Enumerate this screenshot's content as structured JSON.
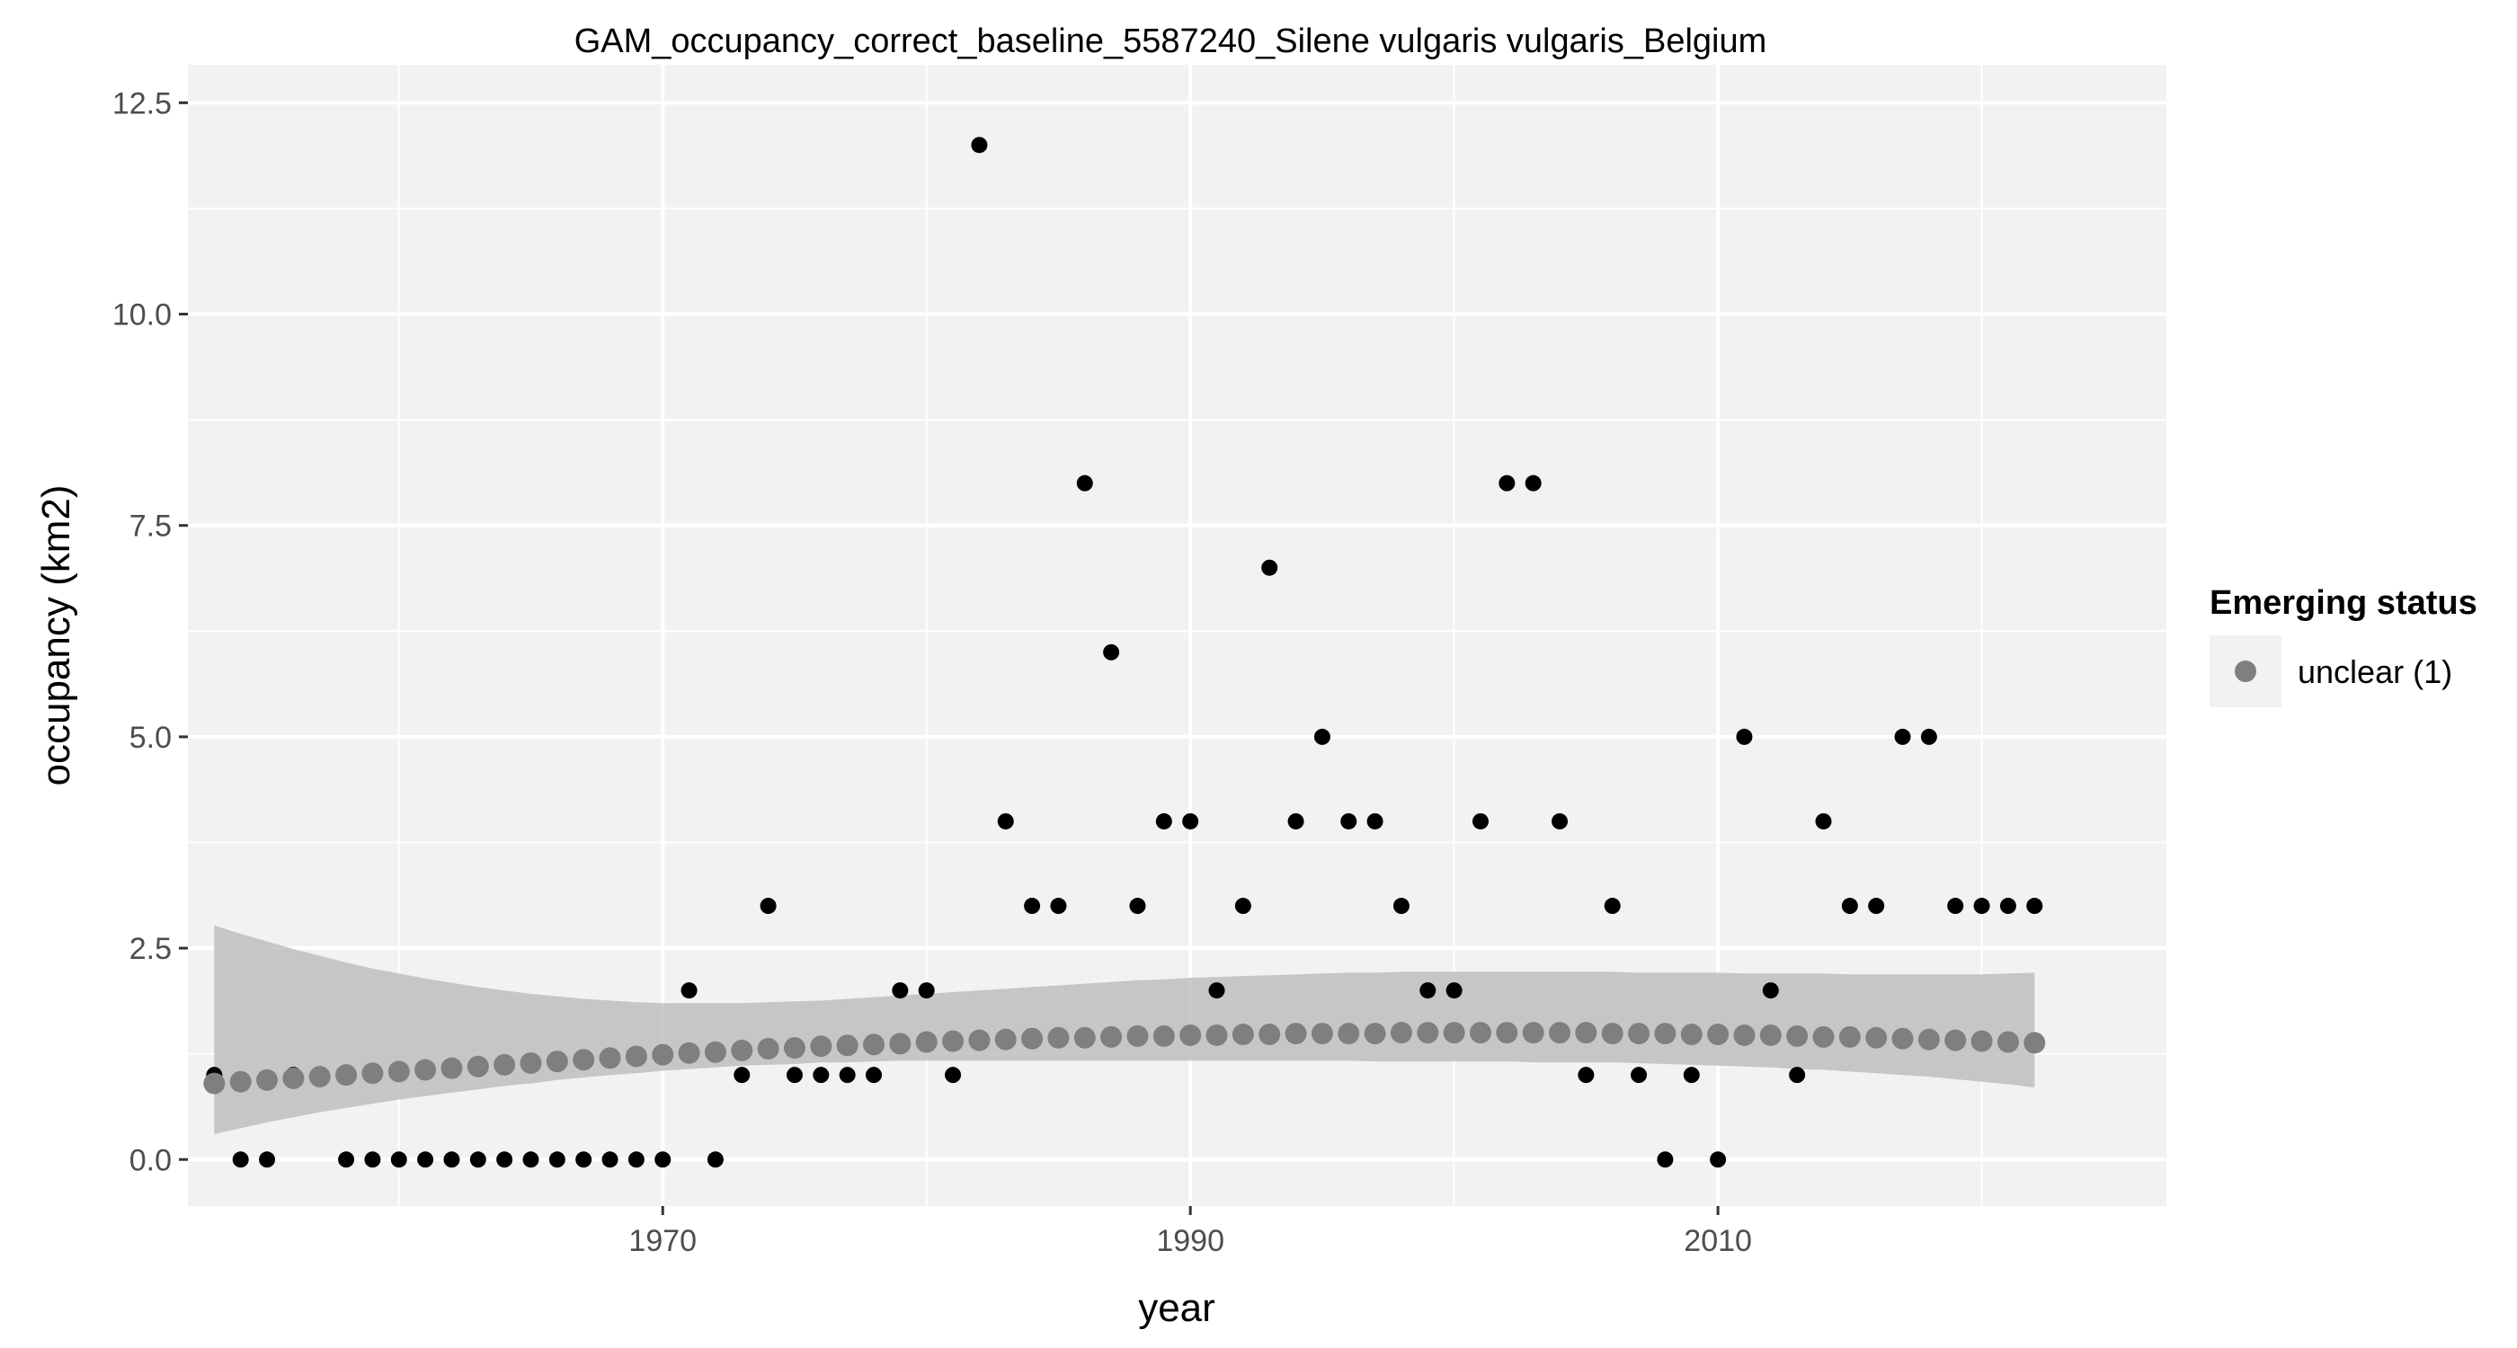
{
  "chart_data": {
    "type": "scatter",
    "title": "GAM_occupancy_correct_baseline_5587240_Silene vulgaris vulgaris_Belgium",
    "xlabel": "year",
    "ylabel": "occupancy (km2)",
    "xlim": [
      1952,
      2027
    ],
    "ylim": [
      -0.55,
      12.95
    ],
    "x_ticks": [
      1970,
      1990,
      2010
    ],
    "x_tick_labels": [
      "1970",
      "1990",
      "2010"
    ],
    "x_minor_ticks": [
      1960,
      1980,
      2000,
      2020
    ],
    "y_ticks": [
      0,
      2.5,
      5,
      7.5,
      10,
      12.5
    ],
    "y_tick_labels": [
      "0.0",
      "2.5",
      "5.0",
      "7.5",
      "10.0",
      "12.5"
    ],
    "y_minor_ticks": [
      1.25,
      3.75,
      6.25,
      8.75,
      11.25
    ],
    "grid": true,
    "legend": {
      "title": "Emerging status",
      "placement": "right",
      "entries": [
        {
          "label": "unclear (1)",
          "color": "#7f7f7f"
        }
      ]
    },
    "colors": {
      "panel": "#f2f2f2",
      "grid": "#ffffff",
      "observed": "#000000",
      "fit": "#7f7f7f",
      "band": "#bebebe"
    },
    "observed": {
      "x": [
        1953,
        1954,
        1955,
        1956,
        1957,
        1958,
        1959,
        1960,
        1961,
        1962,
        1963,
        1964,
        1965,
        1966,
        1967,
        1968,
        1969,
        1970,
        1971,
        1972,
        1973,
        1974,
        1975,
        1976,
        1977,
        1978,
        1979,
        1980,
        1981,
        1982,
        1983,
        1984,
        1985,
        1986,
        1987,
        1988,
        1989,
        1990,
        1991,
        1992,
        1993,
        1994,
        1995,
        1996,
        1997,
        1998,
        1999,
        2000,
        2001,
        2002,
        2003,
        2004,
        2005,
        2006,
        2007,
        2008,
        2009,
        2010,
        2011,
        2012,
        2013,
        2014,
        2015,
        2016,
        2017,
        2018,
        2019,
        2020,
        2021,
        2022
      ],
      "y": [
        1,
        0,
        0,
        1,
        1,
        0,
        0,
        0,
        0,
        0,
        0,
        0,
        0,
        0,
        0,
        0,
        0,
        0,
        2,
        0,
        1,
        3,
        1,
        1,
        1,
        1,
        2,
        2,
        1,
        12,
        4,
        3,
        3,
        8,
        6,
        3,
        4,
        4,
        2,
        3,
        7,
        4,
        5,
        4,
        4,
        3,
        2,
        2,
        4,
        8,
        8,
        4,
        1,
        3,
        1,
        0,
        1,
        0,
        5,
        2,
        1,
        4,
        3,
        3,
        5,
        5,
        3,
        3,
        3,
        3
      ]
    },
    "series": [
      {
        "name": "unclear (1)",
        "x": [
          1953,
          1954,
          1955,
          1956,
          1957,
          1958,
          1959,
          1960,
          1961,
          1962,
          1963,
          1964,
          1965,
          1966,
          1967,
          1968,
          1969,
          1970,
          1971,
          1972,
          1973,
          1974,
          1975,
          1976,
          1977,
          1978,
          1979,
          1980,
          1981,
          1982,
          1983,
          1984,
          1985,
          1986,
          1987,
          1988,
          1989,
          1990,
          1991,
          1992,
          1993,
          1994,
          1995,
          1996,
          1997,
          1998,
          1999,
          2000,
          2001,
          2002,
          2003,
          2004,
          2005,
          2006,
          2007,
          2008,
          2009,
          2010,
          2011,
          2012,
          2013,
          2014,
          2015,
          2016,
          2017,
          2018,
          2019,
          2020,
          2021,
          2022
        ],
        "fit": [
          0.9,
          0.92,
          0.94,
          0.96,
          0.98,
          1.0,
          1.02,
          1.04,
          1.06,
          1.08,
          1.1,
          1.12,
          1.14,
          1.16,
          1.18,
          1.2,
          1.22,
          1.24,
          1.26,
          1.27,
          1.29,
          1.31,
          1.32,
          1.34,
          1.35,
          1.36,
          1.37,
          1.39,
          1.4,
          1.41,
          1.42,
          1.43,
          1.44,
          1.44,
          1.45,
          1.46,
          1.46,
          1.47,
          1.47,
          1.48,
          1.48,
          1.49,
          1.49,
          1.49,
          1.49,
          1.5,
          1.5,
          1.5,
          1.5,
          1.5,
          1.5,
          1.5,
          1.5,
          1.49,
          1.49,
          1.49,
          1.48,
          1.48,
          1.47,
          1.47,
          1.46,
          1.45,
          1.45,
          1.44,
          1.43,
          1.42,
          1.41,
          1.4,
          1.39,
          1.38
        ],
        "lower": [
          0.3,
          0.37,
          0.44,
          0.5,
          0.56,
          0.61,
          0.66,
          0.71,
          0.75,
          0.79,
          0.83,
          0.87,
          0.9,
          0.94,
          0.97,
          1.0,
          1.02,
          1.05,
          1.07,
          1.09,
          1.11,
          1.12,
          1.13,
          1.15,
          1.15,
          1.16,
          1.17,
          1.17,
          1.17,
          1.17,
          1.17,
          1.17,
          1.17,
          1.17,
          1.17,
          1.17,
          1.17,
          1.17,
          1.17,
          1.17,
          1.17,
          1.17,
          1.17,
          1.17,
          1.16,
          1.16,
          1.16,
          1.16,
          1.16,
          1.16,
          1.15,
          1.15,
          1.15,
          1.15,
          1.14,
          1.13,
          1.12,
          1.11,
          1.1,
          1.09,
          1.07,
          1.06,
          1.04,
          1.02,
          1.0,
          0.98,
          0.95,
          0.92,
          0.89,
          0.85
        ],
        "upper": [
          2.77,
          2.67,
          2.58,
          2.49,
          2.41,
          2.33,
          2.26,
          2.2,
          2.14,
          2.09,
          2.04,
          2.0,
          1.96,
          1.93,
          1.9,
          1.88,
          1.86,
          1.85,
          1.85,
          1.85,
          1.85,
          1.86,
          1.87,
          1.88,
          1.9,
          1.92,
          1.94,
          1.96,
          1.98,
          2.0,
          2.02,
          2.04,
          2.06,
          2.08,
          2.1,
          2.12,
          2.13,
          2.15,
          2.16,
          2.17,
          2.18,
          2.19,
          2.2,
          2.21,
          2.21,
          2.22,
          2.22,
          2.22,
          2.22,
          2.22,
          2.22,
          2.22,
          2.22,
          2.22,
          2.21,
          2.21,
          2.21,
          2.21,
          2.2,
          2.2,
          2.2,
          2.2,
          2.19,
          2.19,
          2.19,
          2.19,
          2.19,
          2.19,
          2.2,
          2.21
        ]
      }
    ]
  }
}
